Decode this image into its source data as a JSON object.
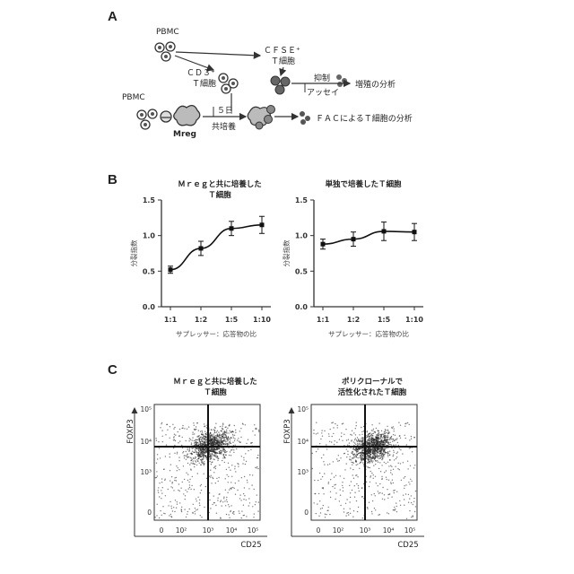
{
  "panels": {
    "a": "A",
    "b": "B",
    "c": "C"
  },
  "schematic": {
    "pbmc_top": "PBMC",
    "cfse_line1": "ＣＦＳＥ⁺",
    "cfse_line2": "Ｔ細胞",
    "cd3_line1": "ＣＤ３⁺",
    "cd3_line2": "Ｔ細胞",
    "suppression_line1": "抑制",
    "suppression_line2": "アッセイ",
    "proliferation": "増殖の分析",
    "pbmc_left": "PBMC",
    "mreg": "Mreg",
    "days_line1": "５日",
    "days_line2": "共培養",
    "facs": "ＦＡＣによるＴ細胞の分析"
  },
  "chart_data": [
    {
      "type": "line",
      "title": "Ｍｒｅｇと共に培養した Ｔ細胞",
      "title_lines": [
        "Ｍｒｅｇと共に培養した",
        "Ｔ細胞"
      ],
      "xlabel": "サプレッサー：応答物の比",
      "ylabel": "分裂指数",
      "categories": [
        "1:1",
        "1:2",
        "1:5",
        "1:10"
      ],
      "values": [
        0.52,
        0.82,
        1.1,
        1.15
      ],
      "errors": [
        0.05,
        0.1,
        0.1,
        0.12
      ],
      "ylim": [
        0.0,
        1.5
      ],
      "yticks": [
        "0.0",
        "0.5",
        "1.0",
        "1.5"
      ]
    },
    {
      "type": "line",
      "title": "単独で培養したＴ細胞",
      "title_lines": [
        "単独で培養したＴ細胞"
      ],
      "xlabel": "サプレッサー：応答物の比",
      "ylabel": "分裂指数",
      "categories": [
        "1:1",
        "1:2",
        "1:5",
        "1:10"
      ],
      "values": [
        0.88,
        0.95,
        1.06,
        1.05
      ],
      "errors": [
        0.07,
        0.1,
        0.13,
        0.12
      ],
      "ylim": [
        0.0,
        1.5
      ],
      "yticks": [
        "0.0",
        "0.5",
        "1.0",
        "1.5"
      ]
    }
  ],
  "flow": [
    {
      "title_lines": [
        "Ｍｒｅｇと共に培養した",
        "Ｔ細胞"
      ],
      "ylabel": "FOXP3",
      "xlabel": "CD25",
      "ticks": [
        "0",
        "10²",
        "10³",
        "10⁴",
        "10⁵"
      ],
      "yticks": [
        "10⁵",
        "10⁴",
        "10³",
        "0"
      ]
    },
    {
      "title_lines": [
        "ポリクローナルで",
        "活性化されたＴ細胞"
      ],
      "ylabel": "FOXP3",
      "xlabel": "CD25",
      "ticks": [
        "0",
        "10²",
        "10³",
        "10⁴",
        "10⁵"
      ],
      "yticks": [
        "10⁵",
        "10⁴",
        "10³",
        "0"
      ]
    }
  ]
}
